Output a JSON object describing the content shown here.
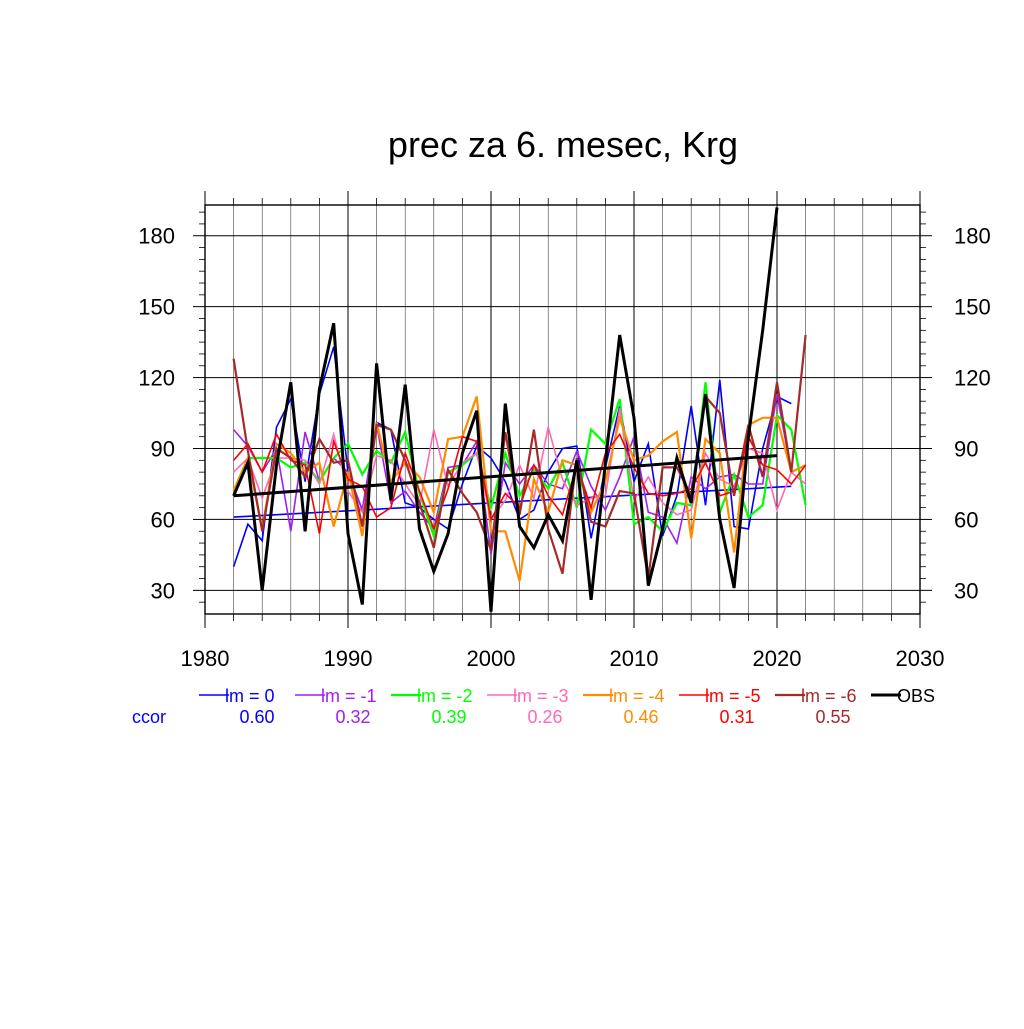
{
  "chart_data": {
    "type": "line",
    "title": "prec za 6. mesec, Krg",
    "xlabel": "",
    "ylabel": "",
    "xlim": [
      1980,
      2030
    ],
    "ylim": [
      20,
      193
    ],
    "xticks": [
      1980,
      1990,
      2000,
      2010,
      2020,
      2030
    ],
    "yticks": [
      30,
      60,
      90,
      120,
      150,
      180
    ],
    "grid": true,
    "legend_position": "bottom",
    "ccor_label": "ccor",
    "colors": {
      "ccor_label": "#0000ff",
      "frame": "#000000",
      "grid_major": "#000000",
      "grid_minor": "#000000"
    },
    "series": [
      {
        "name": "lm = 0",
        "color": "#0000ff",
        "width": 1.6,
        "ccor": "0.60",
        "x": [
          1982,
          1983,
          1984,
          1985,
          1986,
          1987,
          1988,
          1989,
          1990,
          1991,
          1992,
          1993,
          1994,
          1995,
          1996,
          1997,
          1998,
          1999,
          2000,
          2001,
          2002,
          2003,
          2004,
          2005,
          2006,
          2007,
          2008,
          2009,
          2010,
          2011,
          2012,
          2013,
          2014,
          2015,
          2016,
          2017,
          2018,
          2019,
          2020,
          2021
        ],
        "y": [
          40,
          58,
          51,
          99,
          111,
          76,
          113,
          133,
          80,
          64,
          101,
          98,
          67,
          65,
          60,
          56,
          75,
          91,
          86,
          76,
          60,
          64,
          80,
          90,
          91,
          52,
          82,
          108,
          76,
          92,
          53,
          70,
          108,
          66,
          119,
          57,
          56,
          90,
          112,
          109
        ],
        "trend": [
          61,
          74
        ]
      },
      {
        "name": "lm = -1",
        "color": "#a020f0",
        "width": 1.6,
        "ccor": "0.32",
        "x": [
          1982,
          1983,
          1984,
          1985,
          1986,
          1987,
          1988,
          1989,
          1990,
          1991,
          1992,
          1993,
          1994,
          1995,
          1996,
          1997,
          1998,
          1999,
          2000,
          2001,
          2002,
          2003,
          2004,
          2005,
          2006,
          2007,
          2008,
          2009,
          2010,
          2011,
          2012,
          2013,
          2014,
          2015,
          2016,
          2017,
          2018,
          2019,
          2020,
          2021,
          2022
        ],
        "y": [
          98,
          91,
          80,
          90,
          55,
          97,
          76,
          86,
          80,
          64,
          100,
          67,
          72,
          63,
          56,
          82,
          83,
          93,
          45,
          84,
          75,
          83,
          75,
          73,
          89,
          74,
          64,
          78,
          95,
          63,
          61,
          50,
          78,
          73,
          78,
          79,
          75,
          75,
          113,
          80,
          83
        ]
      },
      {
        "name": "lm = -2",
        "color": "#00ff00",
        "width": 2.2,
        "ccor": "0.39",
        "x": [
          1982,
          1983,
          1984,
          1985,
          1986,
          1987,
          1988,
          1989,
          1990,
          1991,
          1992,
          1993,
          1994,
          1995,
          1996,
          1997,
          1998,
          1999,
          2000,
          2001,
          2002,
          2003,
          2004,
          2005,
          2006,
          2007,
          2008,
          2009,
          2010,
          2011,
          2012,
          2013,
          2014,
          2015,
          2016,
          2017,
          2018,
          2019,
          2020,
          2021,
          2022
        ],
        "y": [
          72,
          86,
          86,
          86,
          82,
          84,
          76,
          86,
          92,
          79,
          89,
          84,
          97,
          71,
          53,
          80,
          83,
          88,
          65,
          88,
          70,
          81,
          73,
          84,
          65,
          98,
          92,
          111,
          58,
          61,
          55,
          67,
          66,
          118,
          63,
          79,
          61,
          66,
          104,
          98,
          66
        ]
      },
      {
        "name": "lm = -3",
        "color": "#ff69b4",
        "width": 1.6,
        "ccor": "0.26",
        "x": [
          1982,
          1983,
          1984,
          1985,
          1986,
          1987,
          1988,
          1989,
          1990,
          1991,
          1992,
          1993,
          1994,
          1995,
          1996,
          1997,
          1998,
          1999,
          2000,
          2001,
          2002,
          2003,
          2004,
          2005,
          2006,
          2007,
          2008,
          2009,
          2010,
          2011,
          2012,
          2013,
          2014,
          2015,
          2016,
          2017,
          2018,
          2019,
          2020,
          2021,
          2022
        ],
        "y": [
          80,
          86,
          69,
          86,
          86,
          85,
          75,
          96,
          72,
          63,
          87,
          85,
          75,
          66,
          98,
          74,
          84,
          88,
          60,
          68,
          83,
          69,
          99,
          77,
          66,
          69,
          70,
          107,
          68,
          78,
          67,
          62,
          64,
          88,
          77,
          74,
          90,
          88,
          64,
          80,
          75
        ]
      },
      {
        "name": "lm = -4",
        "color": "#ff8c00",
        "width": 2.2,
        "ccor": "0.46",
        "x": [
          1982,
          1983,
          1984,
          1985,
          1986,
          1987,
          1988,
          1989,
          1990,
          1991,
          1992,
          1993,
          1994,
          1995,
          1996,
          1997,
          1998,
          1999,
          2000,
          2001,
          2002,
          2003,
          2004,
          2005,
          2006,
          2007,
          2008,
          2009,
          2010,
          2011,
          2012,
          2013,
          2014,
          2015,
          2016,
          2017,
          2018,
          2019,
          2020,
          2021,
          2022
        ],
        "y": [
          72,
          86,
          56,
          92,
          88,
          80,
          84,
          57,
          80,
          53,
          101,
          76,
          84,
          78,
          63,
          94,
          95,
          112,
          55,
          55,
          34,
          77,
          63,
          85,
          83,
          63,
          76,
          103,
          85,
          87,
          93,
          97,
          52,
          94,
          88,
          46,
          100,
          103,
          103,
          80,
          83
        ]
      },
      {
        "name": "lm = -5",
        "color": "#ff0000",
        "width": 1.6,
        "ccor": "0.31",
        "x": [
          1982,
          1983,
          1984,
          1985,
          1986,
          1987,
          1988,
          1989,
          1990,
          1991,
          1992,
          1993,
          1994,
          1995,
          1996,
          1997,
          1998,
          1999,
          2000,
          2001,
          2002,
          2003,
          2004,
          2005,
          2006,
          2007,
          2008,
          2009,
          2010,
          2011,
          2012,
          2013,
          2014,
          2015,
          2016,
          2017,
          2018,
          2019,
          2020,
          2021,
          2022
        ],
        "y": [
          85,
          92,
          80,
          96,
          85,
          83,
          54,
          93,
          77,
          74,
          61,
          65,
          88,
          72,
          56,
          73,
          95,
          93,
          60,
          71,
          65,
          83,
          70,
          62,
          83,
          65,
          88,
          96,
          82,
          71,
          70,
          71,
          73,
          84,
          70,
          72,
          95,
          83,
          81,
          75,
          83
        ]
      },
      {
        "name": "lm = -6",
        "color": "#a52a2a",
        "width": 2.2,
        "ccor": "0.55",
        "x": [
          1982,
          1983,
          1984,
          1985,
          1986,
          1987,
          1988,
          1989,
          1990,
          1991,
          1992,
          1993,
          1994,
          1995,
          1996,
          1997,
          1998,
          1999,
          2000,
          2001,
          2002,
          2003,
          2004,
          2005,
          2006,
          2007,
          2008,
          2009,
          2010,
          2011,
          2012,
          2013,
          2014,
          2015,
          2016,
          2017,
          2018,
          2019,
          2020,
          2021,
          2022
        ],
        "y": [
          128,
          89,
          55,
          90,
          86,
          78,
          94,
          84,
          85,
          57,
          100,
          98,
          85,
          67,
          48,
          81,
          71,
          63,
          47,
          97,
          62,
          98,
          56,
          37,
          86,
          59,
          57,
          72,
          71,
          35,
          82,
          82,
          70,
          112,
          105,
          70,
          100,
          78,
          118,
          80,
          138
        ]
      },
      {
        "name": "OBS",
        "color": "#000000",
        "width": 3,
        "ccor": "",
        "x": [
          1982,
          1983,
          1984,
          1985,
          1986,
          1987,
          1988,
          1989,
          1990,
          1991,
          1992,
          1993,
          1994,
          1995,
          1996,
          1997,
          1998,
          1999,
          2000,
          2001,
          2002,
          2003,
          2004,
          2005,
          2006,
          2007,
          2008,
          2009,
          2010,
          2011,
          2012,
          2013,
          2014,
          2015,
          2016,
          2017,
          2018,
          2019,
          2020
        ],
        "y": [
          70,
          84,
          30,
          83,
          118,
          55,
          115,
          143,
          54,
          24,
          126,
          68,
          117,
          56,
          38,
          54,
          88,
          106,
          21,
          109,
          57,
          48,
          62,
          51,
          85,
          26,
          84,
          138,
          103,
          32,
          56,
          86,
          67,
          113,
          60,
          31,
          95,
          140,
          192
        ],
        "trend": [
          70,
          87
        ]
      }
    ]
  }
}
